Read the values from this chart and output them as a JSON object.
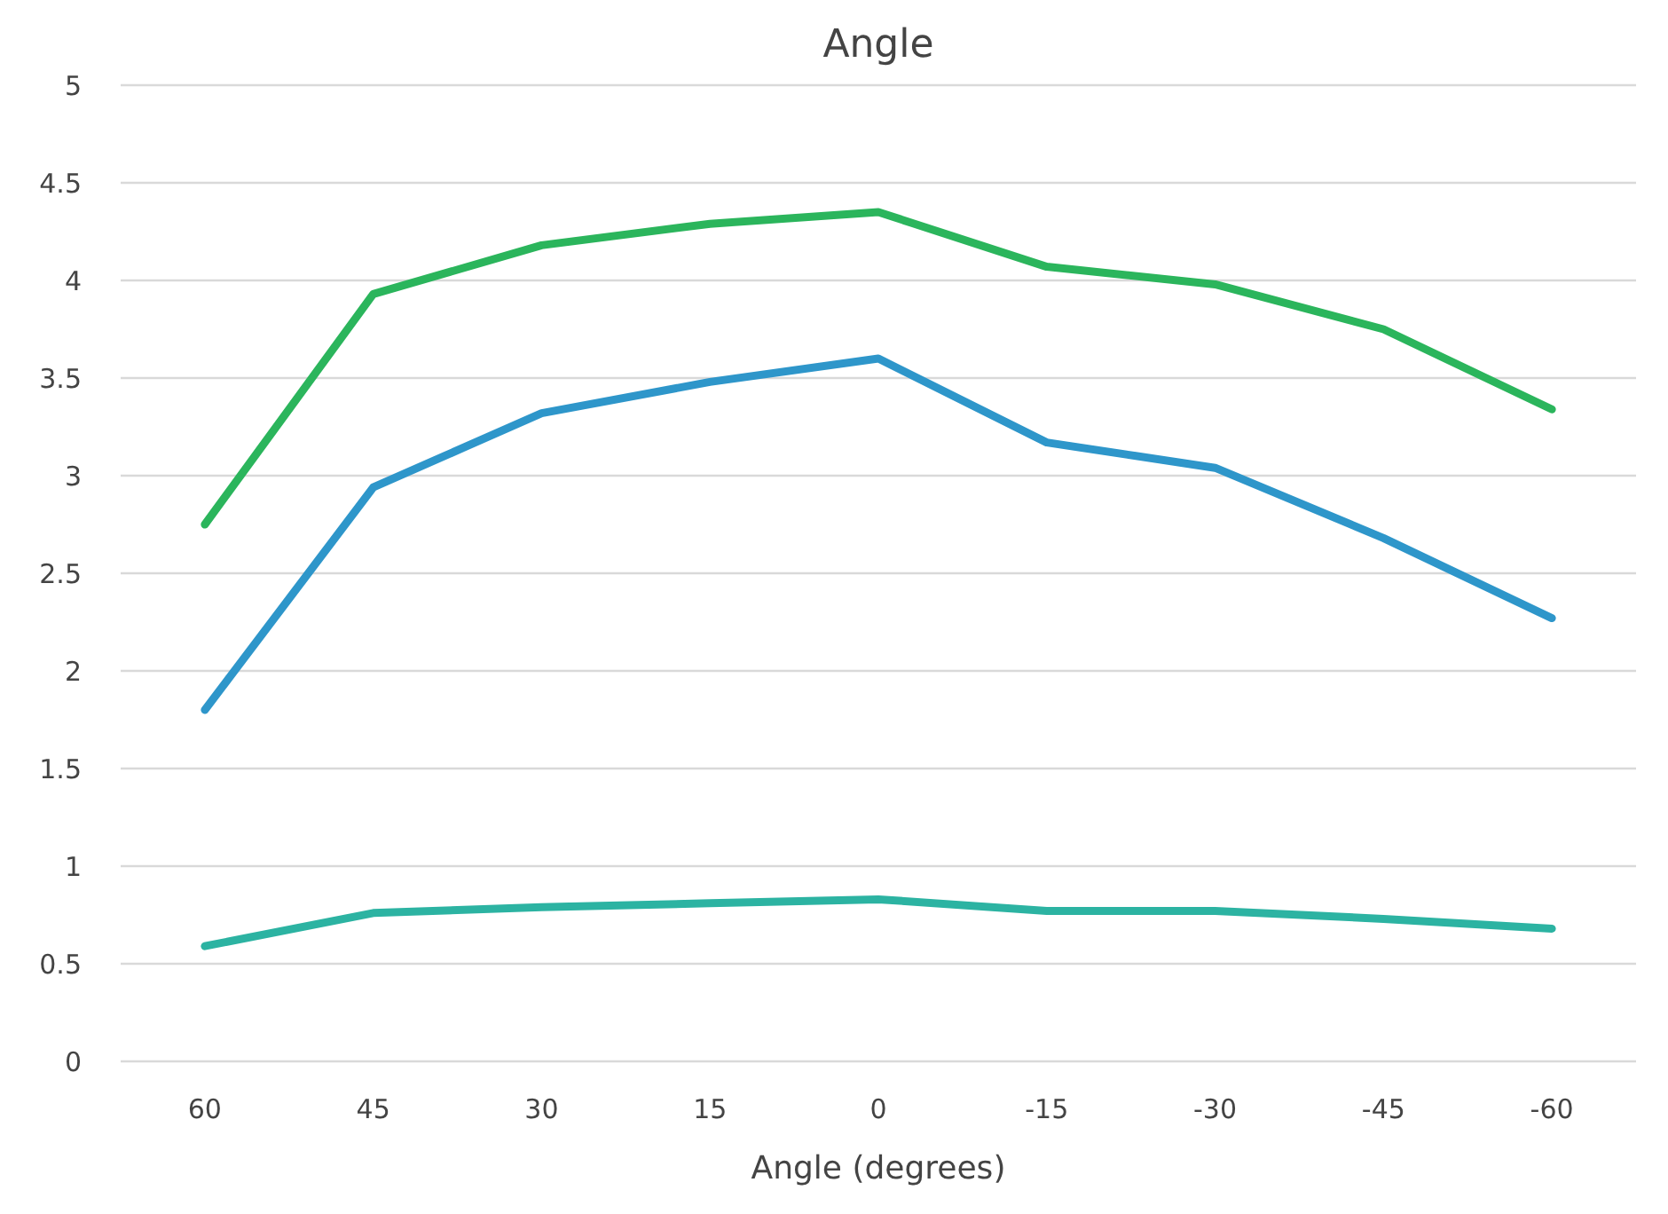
{
  "chart_data": {
    "type": "line",
    "title": "Angle",
    "xlabel": "Angle (degrees)",
    "categories": [
      "60",
      "45",
      "30",
      "15",
      "0",
      "-15",
      "-30",
      "-45",
      "-60"
    ],
    "series": [
      {
        "color": "#2bb55c",
        "values": [
          2.75,
          3.93,
          4.18,
          4.29,
          4.35,
          4.07,
          3.98,
          3.75,
          3.34
        ]
      },
      {
        "color": "#2e96ca",
        "values": [
          1.8,
          2.94,
          3.32,
          3.48,
          3.6,
          3.17,
          3.04,
          2.68,
          2.27
        ]
      },
      {
        "color": "#2cb3a2",
        "values": [
          0.59,
          0.76,
          0.79,
          0.81,
          0.83,
          0.77,
          0.77,
          0.73,
          0.68
        ]
      }
    ],
    "ylim": [
      0,
      5
    ],
    "yticks": [
      0,
      0.5,
      1,
      1.5,
      2,
      2.5,
      3,
      3.5,
      4,
      4.5,
      5
    ],
    "grid": "y",
    "marker": "none",
    "line_style": "solid"
  }
}
